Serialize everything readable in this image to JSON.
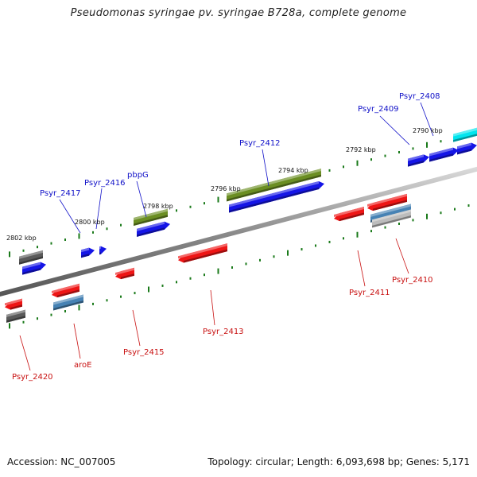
{
  "title": "Pseudomonas syringae pv. syringae B728a, complete genome",
  "footer": {
    "accession": "Accession: NC_007005",
    "summary": "Topology: circular; Length: 6,093,698 bp; Genes: 5,171"
  },
  "colors": {
    "forward_label": "#1010c8",
    "reverse_label": "#c81010",
    "tick": "#1a7a1a",
    "backbone": "#8c8c8c"
  },
  "scale_labels": [
    {
      "text": "2802 kbp",
      "kbp": 2802
    },
    {
      "text": "2800 kbp",
      "kbp": 2800
    },
    {
      "text": "2798 kbp",
      "kbp": 2798
    },
    {
      "text": "2796 kbp",
      "kbp": 2796
    },
    {
      "text": "2794 kbp",
      "kbp": 2794
    },
    {
      "text": "2792 kbp",
      "kbp": 2792
    },
    {
      "text": "2790 kbp",
      "kbp": 2790
    }
  ],
  "forward_labels": [
    "Psyr_2417",
    "Psyr_2416",
    "pbpG",
    "Psyr_2412",
    "Psyr_2409",
    "Psyr_2408"
  ],
  "reverse_labels": [
    "Psyr_2420",
    "aroE",
    "Psyr_2415",
    "Psyr_2413",
    "Psyr_2411",
    "Psyr_2410"
  ]
}
